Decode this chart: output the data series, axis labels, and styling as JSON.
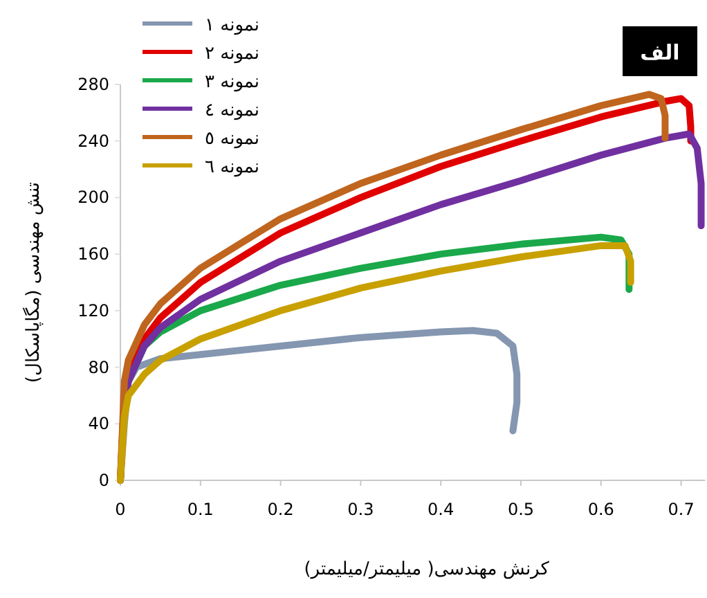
{
  "chart_data": {
    "type": "line",
    "xlabel": "کرنش مهندسی( میلیمتر/میلیمتر)",
    "ylabel": "تنش مهندسی  (مگاپاسکال)",
    "annotations": [
      "الف"
    ],
    "xlim": [
      0,
      0.73
    ],
    "ylim": [
      0,
      280
    ],
    "xticks": [
      0,
      0.1,
      0.2,
      0.3,
      0.4,
      0.5,
      0.6,
      0.7
    ],
    "yticks": [
      0,
      40,
      80,
      120,
      160,
      200,
      240,
      280
    ],
    "grid": false,
    "legend": "top left",
    "marker": "none",
    "line_style": "solid",
    "series": [
      {
        "name": "نمونه ۱",
        "color": "#8496b0",
        "x": [
          0,
          0.005,
          0.01,
          0.02,
          0.05,
          0.1,
          0.2,
          0.3,
          0.4,
          0.44,
          0.47,
          0.49,
          0.495,
          0.495,
          0.49
        ],
        "values": [
          0,
          40,
          70,
          80,
          86,
          89,
          95,
          101,
          105,
          106,
          104,
          95,
          75,
          55,
          35
        ]
      },
      {
        "name": "نمونه ۲",
        "color": "#e00000",
        "x": [
          0,
          0.005,
          0.01,
          0.03,
          0.05,
          0.1,
          0.2,
          0.3,
          0.4,
          0.5,
          0.6,
          0.68,
          0.7,
          0.71,
          0.712,
          0.712
        ],
        "values": [
          0,
          60,
          75,
          100,
          115,
          140,
          175,
          200,
          222,
          240,
          257,
          268,
          270,
          265,
          250,
          240
        ]
      },
      {
        "name": "نمونه ۳",
        "color": "#1aa84a",
        "x": [
          0.01,
          0.03,
          0.05,
          0.1,
          0.2,
          0.3,
          0.4,
          0.5,
          0.6,
          0.625,
          0.635,
          0.635
        ],
        "values": [
          70,
          95,
          105,
          120,
          138,
          150,
          160,
          167,
          172,
          170,
          160,
          135
        ]
      },
      {
        "name": "نمونه ٤",
        "color": "#7030a0",
        "x": [
          0,
          0.005,
          0.01,
          0.03,
          0.05,
          0.1,
          0.2,
          0.3,
          0.4,
          0.5,
          0.6,
          0.68,
          0.71,
          0.72,
          0.725,
          0.725
        ],
        "values": [
          0,
          55,
          70,
          95,
          108,
          128,
          155,
          175,
          195,
          212,
          230,
          242,
          245,
          235,
          210,
          180
        ]
      },
      {
        "name": "نمونه ٥",
        "color": "#c0651e",
        "x": [
          0,
          0.005,
          0.01,
          0.03,
          0.05,
          0.1,
          0.2,
          0.3,
          0.4,
          0.5,
          0.6,
          0.66,
          0.675,
          0.68,
          0.68
        ],
        "values": [
          0,
          70,
          85,
          110,
          125,
          150,
          185,
          210,
          230,
          248,
          265,
          273,
          270,
          258,
          242
        ]
      },
      {
        "name": "نمونه ٦",
        "color": "#c8a000",
        "x": [
          0,
          0.005,
          0.01,
          0.03,
          0.05,
          0.1,
          0.2,
          0.3,
          0.4,
          0.5,
          0.6,
          0.63,
          0.637,
          0.637
        ],
        "values": [
          0,
          45,
          60,
          75,
          85,
          100,
          120,
          136,
          148,
          158,
          166,
          166,
          155,
          140
        ]
      }
    ]
  }
}
